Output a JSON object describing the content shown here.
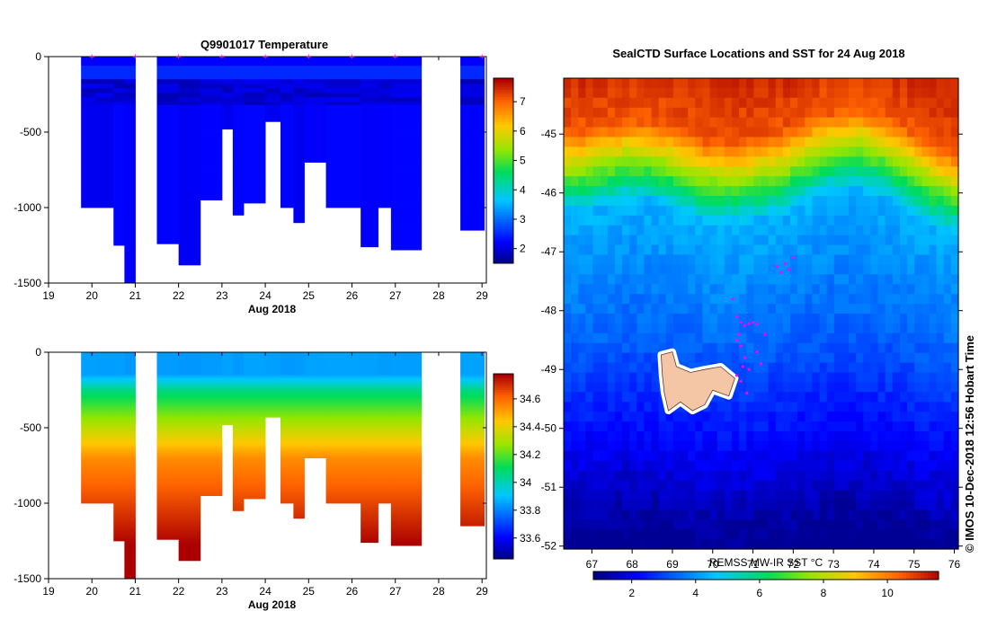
{
  "chart_data": [
    {
      "type": "heatmap",
      "title": "Q9901017  Temperature",
      "variable": "temperature",
      "xlabel": "Aug 2018",
      "xlim": [
        19,
        29.1
      ],
      "ylim": [
        -1500,
        0
      ],
      "xticks": [
        "19",
        "20",
        "21",
        "22",
        "23",
        "24",
        "25",
        "26",
        "27",
        "28",
        "29"
      ],
      "yticks": [
        "0",
        "-500",
        "-1000",
        "-1500"
      ],
      "colorbar_range": [
        1.5,
        7.8
      ],
      "colorbar_ticks": [
        "2",
        "3",
        "4",
        "5",
        "6",
        "7"
      ],
      "profile_markers_x": [
        20,
        21,
        22,
        23,
        24,
        25,
        26,
        27,
        29
      ],
      "profiles": [
        {
          "start": 19.75,
          "end": 20.1,
          "depth": 1000
        },
        {
          "start": 20.1,
          "end": 20.5,
          "depth": 1000
        },
        {
          "start": 20.5,
          "end": 20.75,
          "depth": 1250
        },
        {
          "start": 20.75,
          "end": 21.0,
          "depth": 1500
        },
        {
          "start": 21.5,
          "end": 22.0,
          "depth": 1240
        },
        {
          "start": 22.0,
          "end": 22.5,
          "depth": 1380
        },
        {
          "start": 22.5,
          "end": 23.0,
          "depth": 950
        },
        {
          "start": 23.0,
          "end": 23.25,
          "depth": 480
        },
        {
          "start": 23.25,
          "end": 23.5,
          "depth": 1050
        },
        {
          "start": 23.5,
          "end": 24.0,
          "depth": 970
        },
        {
          "start": 24.0,
          "end": 24.35,
          "depth": 430
        },
        {
          "start": 24.35,
          "end": 24.65,
          "depth": 1000
        },
        {
          "start": 24.65,
          "end": 24.9,
          "depth": 1100
        },
        {
          "start": 24.9,
          "end": 25.4,
          "depth": 700
        },
        {
          "start": 25.4,
          "end": 26.2,
          "depth": 1000
        },
        {
          "start": 26.2,
          "end": 26.6,
          "depth": 1260
        },
        {
          "start": 26.6,
          "end": 26.9,
          "depth": 1000
        },
        {
          "start": 26.9,
          "end": 27.6,
          "depth": 1280
        },
        {
          "start": 28.5,
          "end": 29.05,
          "depth": 1150
        }
      ]
    },
    {
      "type": "heatmap",
      "title": "",
      "variable": "salinity",
      "xlabel": "Aug 2018",
      "xlim": [
        19,
        29.1
      ],
      "ylim": [
        -1500,
        0
      ],
      "xticks": [
        "19",
        "20",
        "21",
        "22",
        "23",
        "24",
        "25",
        "26",
        "27",
        "28",
        "29"
      ],
      "yticks": [
        "0",
        "-500",
        "-1000",
        "-1500"
      ],
      "colorbar_range": [
        33.45,
        34.78
      ],
      "colorbar_ticks": [
        "33.6",
        "33.8",
        "34",
        "34.2",
        "34.4",
        "34.6"
      ],
      "profiles": "same as temperature panel"
    },
    {
      "type": "heatmap",
      "title": "SealCTD Surface Locations and SST for 24 Aug 2018",
      "variable": "sea surface temperature",
      "xlim": [
        66.3,
        76.1
      ],
      "ylim": [
        -52.05,
        -44.05
      ],
      "xticks": [
        "67",
        "68",
        "69",
        "70",
        "71",
        "72",
        "73",
        "74",
        "75",
        "76"
      ],
      "yticks": [
        "-45",
        "-46",
        "-47",
        "-48",
        "-49",
        "-50",
        "-51",
        "-52"
      ],
      "colorbar_label": "REMSS MW-IR SST °C",
      "colorbar_range": [
        0.8,
        11.6
      ],
      "colorbar_ticks": [
        "2",
        "4",
        "6",
        "8",
        "10"
      ],
      "seal_locations": [
        [
          70.6,
          -48.1
        ],
        [
          70.7,
          -48.2
        ],
        [
          70.8,
          -48.25
        ],
        [
          70.9,
          -48.22
        ],
        [
          71.0,
          -48.2
        ],
        [
          71.1,
          -48.23
        ],
        [
          71.3,
          -48.4
        ],
        [
          70.6,
          -48.5
        ],
        [
          70.7,
          -48.6
        ],
        [
          70.8,
          -48.8
        ],
        [
          70.9,
          -49.0
        ],
        [
          70.7,
          -49.2
        ],
        [
          71.1,
          -48.7
        ],
        [
          71.8,
          -47.2
        ],
        [
          71.9,
          -47.3
        ],
        [
          71.7,
          -47.35
        ],
        [
          71.6,
          -47.25
        ],
        [
          72.0,
          -47.1
        ],
        [
          70.5,
          -47.8
        ],
        [
          70.65,
          -48.4
        ],
        [
          70.75,
          -48.95
        ],
        [
          70.85,
          -49.4
        ],
        [
          71.2,
          -48.9
        ],
        [
          70.6,
          -49.1
        ]
      ]
    }
  ],
  "footer": {
    "credit": "© IMOS 10-Dec-2018 12:56 Hobart Time"
  }
}
